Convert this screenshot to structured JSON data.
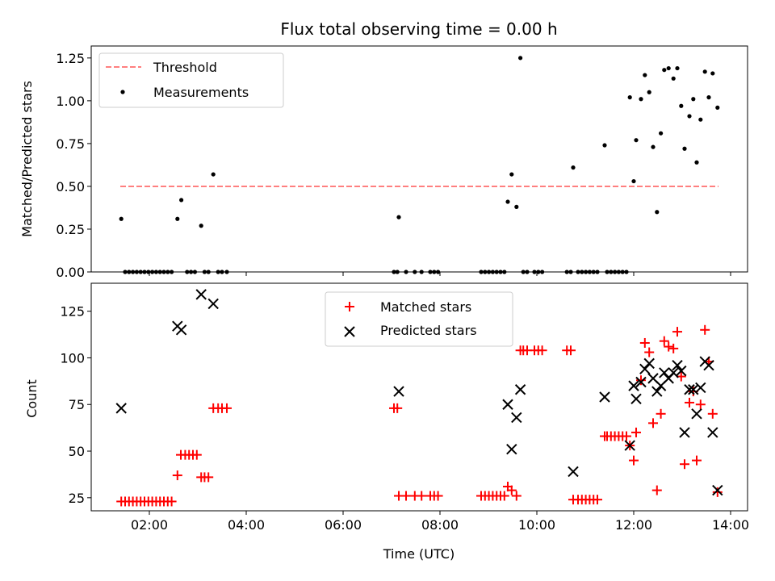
{
  "chart_data": [
    {
      "type": "scatter",
      "title": "Flux total observing time = 0.00 h",
      "xlabel": "",
      "ylabel": "Matched/Predicted stars",
      "xlim": [
        0.8,
        14.35
      ],
      "ylim": [
        0,
        1.32
      ],
      "x_ticks": [
        2,
        4,
        6,
        8,
        10,
        12,
        14
      ],
      "y_ticks": [
        0,
        0.25,
        0.5,
        0.75,
        1.0,
        1.25
      ],
      "y_tick_labels": [
        "0.00",
        "0.25",
        "0.50",
        "0.75",
        "1.00",
        "1.25"
      ],
      "grid": false,
      "legend_position": "top-left",
      "threshold": {
        "name": "Threshold",
        "value": 0.5,
        "x": [
          1.4,
          13.75
        ],
        "color": "#ff7f7f"
      },
      "series": [
        {
          "name": "Measurements",
          "color": "#000000",
          "points": [
            [
              1.42,
              0.31
            ],
            [
              2.58,
              0.31
            ],
            [
              2.66,
              0.42
            ],
            [
              3.07,
              0.27
            ],
            [
              3.32,
              0.57
            ],
            [
              7.15,
              0.32
            ],
            [
              9.4,
              0.41
            ],
            [
              9.48,
              0.57
            ],
            [
              9.58,
              0.38
            ],
            [
              9.66,
              1.25
            ],
            [
              10.75,
              0.61
            ],
            [
              11.4,
              0.74
            ],
            [
              11.92,
              1.02
            ],
            [
              12.0,
              0.53
            ],
            [
              12.05,
              0.77
            ],
            [
              12.15,
              1.01
            ],
            [
              12.23,
              1.15
            ],
            [
              12.32,
              1.05
            ],
            [
              12.4,
              0.73
            ],
            [
              12.48,
              0.35
            ],
            [
              12.56,
              0.81
            ],
            [
              12.63,
              1.18
            ],
            [
              12.72,
              1.19
            ],
            [
              12.82,
              1.13
            ],
            [
              12.9,
              1.19
            ],
            [
              12.98,
              0.97
            ],
            [
              13.05,
              0.72
            ],
            [
              13.15,
              0.91
            ],
            [
              13.23,
              1.01
            ],
            [
              13.3,
              0.64
            ],
            [
              13.38,
              0.89
            ],
            [
              13.47,
              1.17
            ],
            [
              13.55,
              1.02
            ],
            [
              13.63,
              1.16
            ],
            [
              13.73,
              0.96
            ],
            [
              1.5,
              0
            ],
            [
              1.58,
              0
            ],
            [
              1.66,
              0
            ],
            [
              1.74,
              0
            ],
            [
              1.82,
              0
            ],
            [
              1.9,
              0
            ],
            [
              1.98,
              0
            ],
            [
              2.06,
              0
            ],
            [
              2.14,
              0
            ],
            [
              2.22,
              0
            ],
            [
              2.3,
              0
            ],
            [
              2.38,
              0
            ],
            [
              2.46,
              0
            ],
            [
              2.78,
              0
            ],
            [
              2.86,
              0
            ],
            [
              2.94,
              0
            ],
            [
              3.14,
              0
            ],
            [
              3.22,
              0
            ],
            [
              3.42,
              0
            ],
            [
              3.5,
              0
            ],
            [
              3.6,
              0
            ],
            [
              7.05,
              0
            ],
            [
              7.12,
              0
            ],
            [
              7.3,
              0
            ],
            [
              7.48,
              0
            ],
            [
              7.62,
              0
            ],
            [
              7.8,
              0
            ],
            [
              7.88,
              0
            ],
            [
              7.96,
              0
            ],
            [
              8.85,
              0
            ],
            [
              8.93,
              0
            ],
            [
              9.01,
              0
            ],
            [
              9.09,
              0
            ],
            [
              9.17,
              0
            ],
            [
              9.25,
              0
            ],
            [
              9.33,
              0
            ],
            [
              9.72,
              0
            ],
            [
              9.8,
              0
            ],
            [
              9.95,
              0
            ],
            [
              10.03,
              0
            ],
            [
              10.11,
              0
            ],
            [
              10.62,
              0
            ],
            [
              10.7,
              0
            ],
            [
              10.85,
              0
            ],
            [
              10.93,
              0
            ],
            [
              11.01,
              0
            ],
            [
              11.09,
              0
            ],
            [
              11.17,
              0
            ],
            [
              11.25,
              0
            ],
            [
              11.45,
              0
            ],
            [
              11.53,
              0
            ],
            [
              11.61,
              0
            ],
            [
              11.69,
              0
            ],
            [
              11.77,
              0
            ],
            [
              11.85,
              0
            ]
          ]
        }
      ]
    },
    {
      "type": "scatter",
      "title": "",
      "xlabel": "Time (UTC)",
      "ylabel": "Count",
      "xlim": [
        0.8,
        14.35
      ],
      "ylim": [
        18,
        140
      ],
      "x_ticks": [
        2,
        4,
        6,
        8,
        10,
        12,
        14
      ],
      "x_tick_labels": [
        "02:00",
        "04:00",
        "06:00",
        "08:00",
        "10:00",
        "12:00",
        "14:00"
      ],
      "y_ticks": [
        25,
        50,
        75,
        100,
        125
      ],
      "y_tick_labels": [
        "25",
        "50",
        "75",
        "100",
        "125"
      ],
      "grid": false,
      "legend_position": "top-center",
      "series": [
        {
          "name": "Matched stars",
          "marker": "plus",
          "color": "#ff0000",
          "points": [
            [
              1.42,
              23
            ],
            [
              1.5,
              23
            ],
            [
              1.58,
              23
            ],
            [
              1.66,
              23
            ],
            [
              1.74,
              23
            ],
            [
              1.82,
              23
            ],
            [
              1.9,
              23
            ],
            [
              1.98,
              23
            ],
            [
              2.06,
              23
            ],
            [
              2.14,
              23
            ],
            [
              2.22,
              23
            ],
            [
              2.3,
              23
            ],
            [
              2.38,
              23
            ],
            [
              2.46,
              23
            ],
            [
              2.58,
              37
            ],
            [
              2.65,
              48
            ],
            [
              2.74,
              48
            ],
            [
              2.82,
              48
            ],
            [
              2.9,
              48
            ],
            [
              2.98,
              48
            ],
            [
              3.07,
              36
            ],
            [
              3.14,
              36
            ],
            [
              3.22,
              36
            ],
            [
              3.32,
              73
            ],
            [
              3.42,
              73
            ],
            [
              3.5,
              73
            ],
            [
              3.6,
              73
            ],
            [
              7.05,
              73
            ],
            [
              7.12,
              73
            ],
            [
              7.15,
              26
            ],
            [
              7.3,
              26
            ],
            [
              7.48,
              26
            ],
            [
              7.62,
              26
            ],
            [
              7.8,
              26
            ],
            [
              7.88,
              26
            ],
            [
              7.96,
              26
            ],
            [
              8.85,
              26
            ],
            [
              8.93,
              26
            ],
            [
              9.01,
              26
            ],
            [
              9.09,
              26
            ],
            [
              9.17,
              26
            ],
            [
              9.25,
              26
            ],
            [
              9.33,
              26
            ],
            [
              9.4,
              31
            ],
            [
              9.48,
              29
            ],
            [
              9.58,
              26
            ],
            [
              9.66,
              104
            ],
            [
              9.72,
              104
            ],
            [
              9.8,
              104
            ],
            [
              9.95,
              104
            ],
            [
              10.03,
              104
            ],
            [
              10.11,
              104
            ],
            [
              10.62,
              104
            ],
            [
              10.7,
              104
            ],
            [
              10.75,
              24
            ],
            [
              10.85,
              24
            ],
            [
              10.93,
              24
            ],
            [
              11.01,
              24
            ],
            [
              11.09,
              24
            ],
            [
              11.17,
              24
            ],
            [
              11.25,
              24
            ],
            [
              11.4,
              58
            ],
            [
              11.45,
              58
            ],
            [
              11.53,
              58
            ],
            [
              11.61,
              58
            ],
            [
              11.69,
              58
            ],
            [
              11.77,
              58
            ],
            [
              11.85,
              58
            ],
            [
              11.92,
              53
            ],
            [
              12.0,
              45
            ],
            [
              12.05,
              60
            ],
            [
              12.15,
              88
            ],
            [
              12.23,
              108
            ],
            [
              12.32,
              103
            ],
            [
              12.4,
              65
            ],
            [
              12.48,
              29
            ],
            [
              12.56,
              70
            ],
            [
              12.63,
              109
            ],
            [
              12.72,
              106
            ],
            [
              12.82,
              105
            ],
            [
              12.9,
              114
            ],
            [
              12.98,
              90
            ],
            [
              13.05,
              43
            ],
            [
              13.15,
              76
            ],
            [
              13.23,
              82
            ],
            [
              13.3,
              45
            ],
            [
              13.38,
              75
            ],
            [
              13.47,
              115
            ],
            [
              13.55,
              98
            ],
            [
              13.63,
              70
            ],
            [
              13.73,
              28
            ]
          ]
        },
        {
          "name": "Predicted stars",
          "marker": "x",
          "color": "#000000",
          "points": [
            [
              1.42,
              73
            ],
            [
              2.58,
              117
            ],
            [
              2.66,
              115
            ],
            [
              3.07,
              134
            ],
            [
              3.32,
              129
            ],
            [
              7.15,
              82
            ],
            [
              9.4,
              75
            ],
            [
              9.48,
              51
            ],
            [
              9.58,
              68
            ],
            [
              9.66,
              83
            ],
            [
              10.75,
              39
            ],
            [
              11.4,
              79
            ],
            [
              11.92,
              53
            ],
            [
              12.0,
              85
            ],
            [
              12.05,
              78
            ],
            [
              12.15,
              87
            ],
            [
              12.23,
              94
            ],
            [
              12.32,
              97
            ],
            [
              12.4,
              89
            ],
            [
              12.48,
              82
            ],
            [
              12.56,
              85
            ],
            [
              12.63,
              92
            ],
            [
              12.72,
              89
            ],
            [
              12.82,
              92
            ],
            [
              12.9,
              96
            ],
            [
              12.98,
              93
            ],
            [
              13.05,
              60
            ],
            [
              13.15,
              83
            ],
            [
              13.23,
              83
            ],
            [
              13.3,
              70
            ],
            [
              13.38,
              84
            ],
            [
              13.47,
              98
            ],
            [
              13.55,
              96
            ],
            [
              13.63,
              60
            ],
            [
              13.73,
              29
            ]
          ]
        }
      ]
    }
  ]
}
